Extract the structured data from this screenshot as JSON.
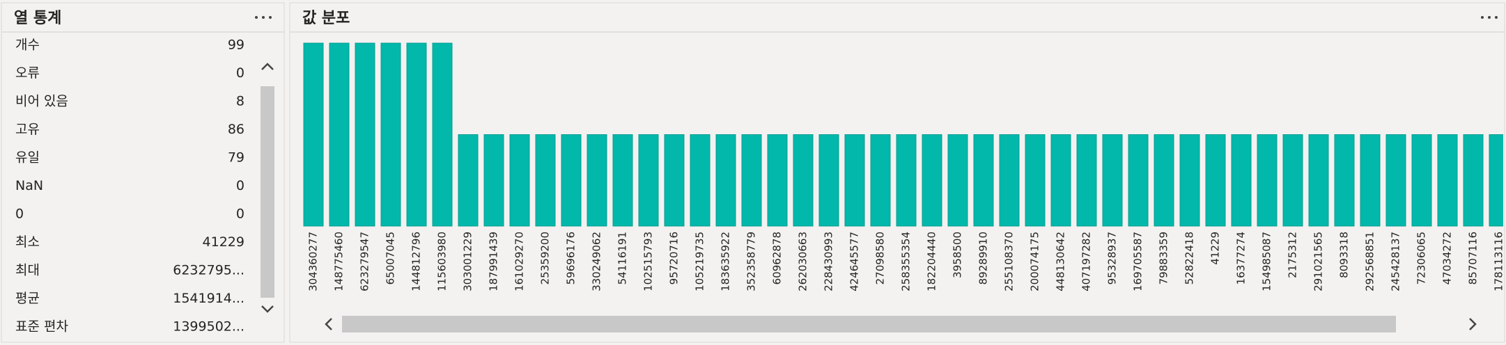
{
  "left_panel": {
    "title": "열 통계",
    "rows": [
      [
        "개수",
        99
      ],
      [
        "오류",
        0
      ],
      [
        "비어 있음",
        8
      ],
      [
        "고유",
        86
      ],
      [
        "유일",
        79
      ],
      [
        "NaN",
        0
      ],
      [
        "0",
        0
      ],
      [
        "최소",
        41229
      ],
      [
        "최대",
        "6232795..."
      ],
      [
        "평균",
        "1541914..."
      ],
      [
        "표준 편차",
        "1399502..."
      ]
    ]
  },
  "chart_data": {
    "type": "bar",
    "title": "값 분포",
    "categories": [
      "304360277",
      "148775460",
      "623279547",
      "65007045",
      "144812796",
      "115603980",
      "303001229",
      "187991439",
      "161029270",
      "25359200",
      "59696176",
      "330249062",
      "54116191",
      "102515793",
      "95720716",
      "105219735",
      "183635922",
      "352358779",
      "60962878",
      "262030663",
      "228430993",
      "424645577",
      "27098580",
      "258355354",
      "182204440",
      "3958500",
      "89289910",
      "255108370",
      "200074175",
      "448130642",
      "407197282",
      "95328937",
      "169705587",
      "79883359",
      "52822418",
      "41229",
      "16377274",
      "154985087",
      "2175312",
      "291021565",
      "8093318",
      "292568851",
      "245428137",
      "72306065",
      "47034272",
      "85707116",
      "178113116"
    ],
    "values": [
      2,
      2,
      2,
      2,
      2,
      2,
      1,
      1,
      1,
      1,
      1,
      1,
      1,
      1,
      1,
      1,
      1,
      1,
      1,
      1,
      1,
      1,
      1,
      1,
      1,
      1,
      1,
      1,
      1,
      1,
      1,
      1,
      1,
      1,
      1,
      1,
      1,
      1,
      1,
      1,
      1,
      1,
      1,
      1,
      1,
      1,
      1
    ],
    "color": "#01b8aa",
    "ylim": [
      0,
      2
    ]
  }
}
